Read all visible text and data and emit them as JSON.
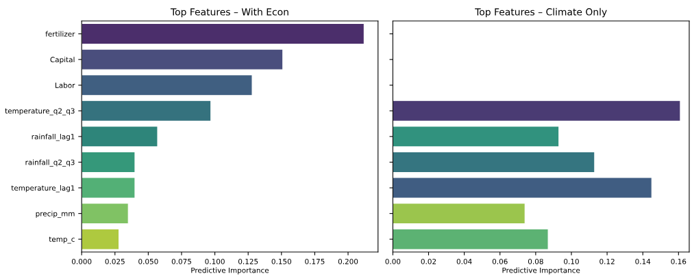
{
  "chart_data": [
    {
      "type": "bar",
      "orientation": "horizontal",
      "title": "Top Features – With Econ",
      "xlabel": "Predictive Importance",
      "categories": [
        "fertilizer",
        "Capital",
        "Labor",
        "temperature_q2_q3",
        "rainfall_lag1",
        "rainfall_q2_q3",
        "temperature_lag1",
        "precip_mm",
        "temp_c"
      ],
      "values": [
        0.212,
        0.151,
        0.128,
        0.097,
        0.057,
        0.04,
        0.04,
        0.035,
        0.028
      ],
      "colors": [
        "#4b2e6b",
        "#4a4e7d",
        "#405f81",
        "#35727e",
        "#2e857a",
        "#35987a",
        "#53b076",
        "#80c264",
        "#aec93f"
      ],
      "xlim": [
        0,
        0.2225
      ],
      "xticks": [
        {
          "value": 0,
          "label": "0.000"
        },
        {
          "value": 0.025,
          "label": "0.025"
        },
        {
          "value": 0.05,
          "label": "0.050"
        },
        {
          "value": 0.075,
          "label": "0.075"
        },
        {
          "value": 0.1,
          "label": "0.100"
        },
        {
          "value": 0.125,
          "label": "0.125"
        },
        {
          "value": 0.15,
          "label": "0.150"
        },
        {
          "value": 0.175,
          "label": "0.175"
        },
        {
          "value": 0.2,
          "label": "0.200"
        }
      ],
      "grid": false
    },
    {
      "type": "bar",
      "orientation": "horizontal",
      "title": "Top Features – Climate Only",
      "xlabel": "Predictive Importance",
      "categories": [
        null,
        null,
        null,
        null,
        null,
        null,
        null,
        null,
        null
      ],
      "values": [
        null,
        null,
        null,
        0.161,
        0.093,
        0.113,
        0.145,
        0.074,
        0.087
      ],
      "colors": [
        null,
        null,
        null,
        "#4a3b73",
        "#31927e",
        "#357580",
        "#405d82",
        "#9bc54d",
        "#5cb273"
      ],
      "xlim": [
        0,
        0.166
      ],
      "xticks": [
        {
          "value": 0,
          "label": "0.00"
        },
        {
          "value": 0.02,
          "label": "0.02"
        },
        {
          "value": 0.04,
          "label": "0.04"
        },
        {
          "value": 0.06,
          "label": "0.06"
        },
        {
          "value": 0.08,
          "label": "0.08"
        },
        {
          "value": 0.1,
          "label": "0.10"
        },
        {
          "value": 0.12,
          "label": "0.12"
        },
        {
          "value": 0.14,
          "label": "0.14"
        },
        {
          "value": 0.16,
          "label": "0.16"
        }
      ],
      "tick_labels": "x",
      "grid": false
    }
  ]
}
